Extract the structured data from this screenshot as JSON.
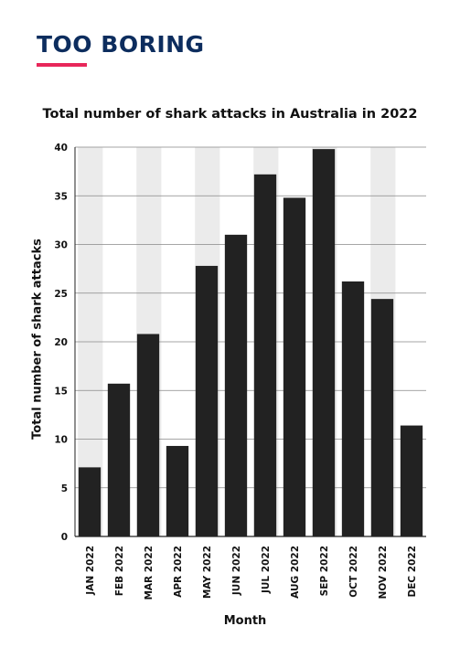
{
  "brand": {
    "name": "TOO BORING",
    "accent_color": "#e8275a",
    "text_color": "#0d2d5e"
  },
  "chart_data": {
    "type": "bar",
    "title": "Total number of shark attacks in Australia in 2022",
    "xlabel": "Month",
    "ylabel": "Total number of shark attacks",
    "categories": [
      "JAN 2022",
      "FEB 2022",
      "MAR 2022",
      "APR 2022",
      "MAY 2022",
      "JUN 2022",
      "JUL 2022",
      "AUG 2022",
      "SEP 2022",
      "OCT 2022",
      "NOV 2022",
      "DEC 2022"
    ],
    "values": [
      7.1,
      15.7,
      20.8,
      9.3,
      27.8,
      31.0,
      37.2,
      34.8,
      39.8,
      26.2,
      24.4,
      11.4
    ],
    "ylim": [
      0,
      40
    ],
    "yticks": [
      0,
      5,
      10,
      15,
      20,
      25,
      30,
      35,
      40
    ],
    "grid": true,
    "bar_color": "#222222",
    "band_color": "#ebebeb"
  }
}
